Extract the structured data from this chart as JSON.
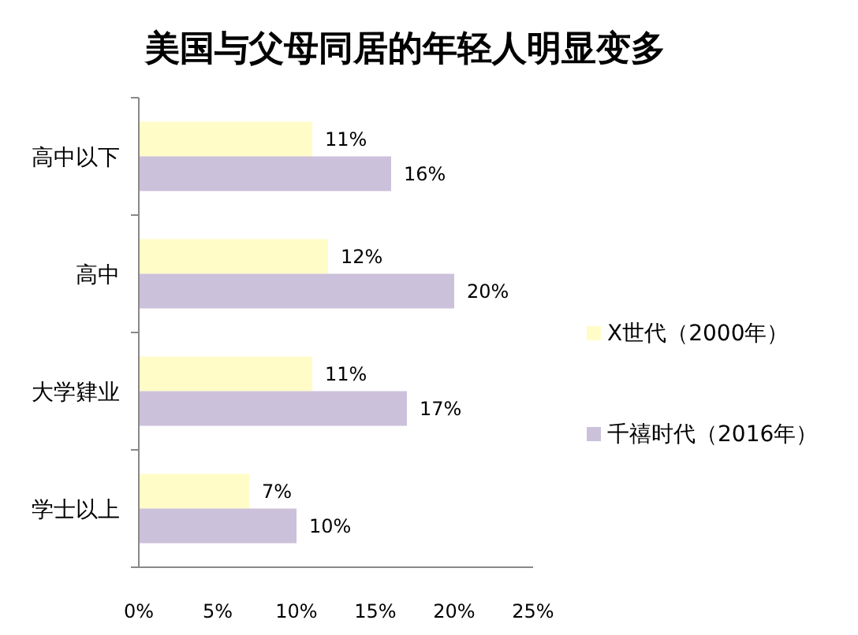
{
  "chart_data": {
    "type": "bar",
    "orientation": "horizontal",
    "title": "美国与父母同居的年轻人明显变多",
    "categories": [
      "高中以下",
      "高中",
      "大学肄业",
      "学士以上"
    ],
    "series": [
      {
        "name": "X世代（2000年）",
        "color": "#fffcc8",
        "values": [
          11,
          12,
          11,
          7
        ],
        "value_labels": [
          "11%",
          "12%",
          "11%",
          "7%"
        ]
      },
      {
        "name": "千禧时代（2016年）",
        "color": "#ccc1da",
        "values": [
          16,
          20,
          17,
          10
        ],
        "value_labels": [
          "16%",
          "20%",
          "17%",
          "10%"
        ]
      }
    ],
    "xlim": [
      0,
      25
    ],
    "xticks": [
      {
        "value": 0,
        "label": "0%"
      },
      {
        "value": 5,
        "label": "5%"
      },
      {
        "value": 10,
        "label": "10%"
      },
      {
        "value": 15,
        "label": "15%"
      },
      {
        "value": 20,
        "label": "20%"
      },
      {
        "value": 25,
        "label": "25%"
      }
    ],
    "legend": "right"
  }
}
